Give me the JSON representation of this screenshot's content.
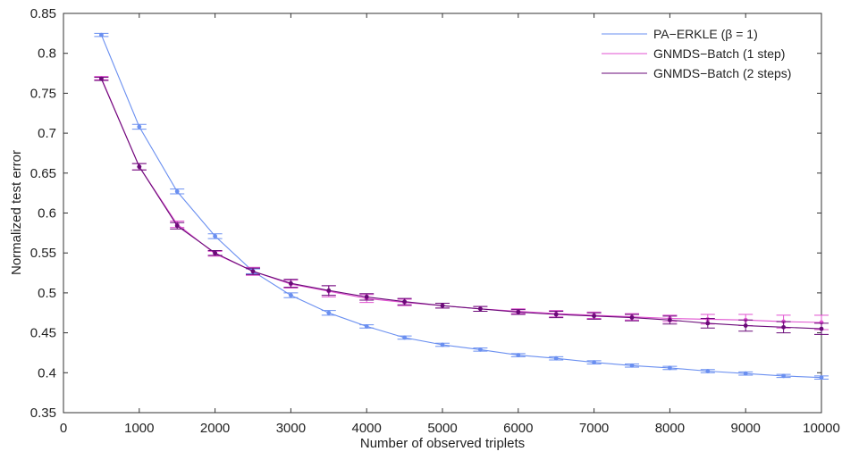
{
  "chart_data": {
    "type": "line",
    "title": "",
    "xlabel": "Number of observed triplets",
    "ylabel": "Normalized test error",
    "xlim": [
      0,
      10000
    ],
    "ylim": [
      0.35,
      0.85
    ],
    "xticks": [
      0,
      1000,
      2000,
      3000,
      4000,
      5000,
      6000,
      7000,
      8000,
      9000,
      10000
    ],
    "yticks": [
      0.35,
      0.4,
      0.45,
      0.5,
      0.55,
      0.6,
      0.65,
      0.7,
      0.75,
      0.8,
      0.85
    ],
    "xtick_labels": [
      "0",
      "1000",
      "2000",
      "3000",
      "4000",
      "5000",
      "6000",
      "7000",
      "8000",
      "9000",
      "10000"
    ],
    "ytick_labels": [
      "0.35",
      "0.4",
      "0.45",
      "0.5",
      "0.55",
      "0.6",
      "0.65",
      "0.7",
      "0.75",
      "0.8",
      "0.85"
    ],
    "grid": false,
    "legend_position": "top-right",
    "x": [
      500,
      1000,
      1500,
      2000,
      2500,
      3000,
      3500,
      4000,
      4500,
      5000,
      5500,
      6000,
      6500,
      7000,
      7500,
      8000,
      8500,
      9000,
      9500,
      10000
    ],
    "series": [
      {
        "name": "PA−ERKLE (β = 1)",
        "color": "#6a8ff0",
        "values": [
          0.823,
          0.708,
          0.627,
          0.571,
          0.527,
          0.497,
          0.475,
          0.458,
          0.444,
          0.435,
          0.429,
          0.422,
          0.418,
          0.413,
          0.409,
          0.406,
          0.402,
          0.399,
          0.396,
          0.394
        ],
        "errors": [
          0.002,
          0.003,
          0.003,
          0.003,
          0.003,
          0.003,
          0.003,
          0.002,
          0.002,
          0.002,
          0.002,
          0.002,
          0.002,
          0.002,
          0.002,
          0.002,
          0.002,
          0.002,
          0.002,
          0.002
        ]
      },
      {
        "name": "GNMDS−Batch (1 step)",
        "color": "#e050d0",
        "values": [
          0.769,
          0.658,
          0.586,
          0.549,
          0.527,
          0.511,
          0.502,
          0.493,
          0.488,
          0.484,
          0.48,
          0.477,
          0.474,
          0.472,
          0.47,
          0.468,
          0.467,
          0.466,
          0.464,
          0.463
        ],
        "errors": [
          0.002,
          0.004,
          0.004,
          0.003,
          0.005,
          0.005,
          0.007,
          0.005,
          0.004,
          0.003,
          0.003,
          0.003,
          0.004,
          0.004,
          0.004,
          0.004,
          0.006,
          0.007,
          0.008,
          0.009
        ]
      },
      {
        "name": "GNMDS−Batch (2 steps)",
        "color": "#6a0a78",
        "values": [
          0.768,
          0.658,
          0.584,
          0.55,
          0.527,
          0.512,
          0.503,
          0.495,
          0.489,
          0.484,
          0.48,
          0.476,
          0.473,
          0.471,
          0.469,
          0.466,
          0.462,
          0.459,
          0.457,
          0.455
        ],
        "errors": [
          0.002,
          0.004,
          0.004,
          0.003,
          0.004,
          0.005,
          0.006,
          0.004,
          0.004,
          0.003,
          0.003,
          0.003,
          0.004,
          0.004,
          0.004,
          0.005,
          0.006,
          0.007,
          0.007,
          0.007
        ]
      }
    ]
  }
}
